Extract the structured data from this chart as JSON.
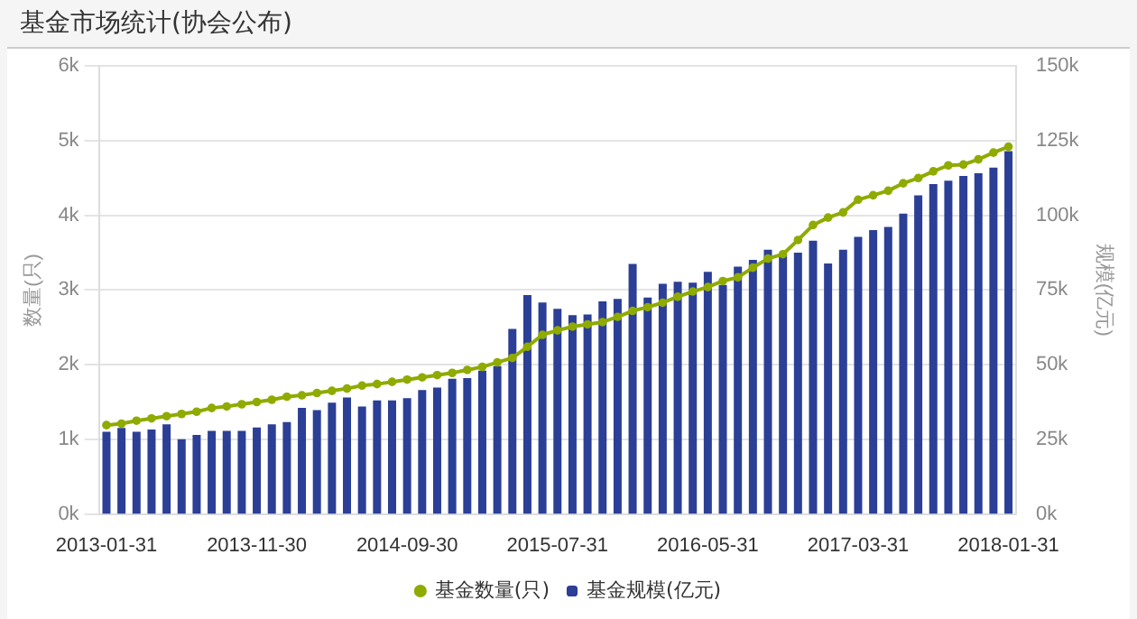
{
  "chart_data": {
    "type": "bar",
    "title": "基金市场统计(协会公布)",
    "ylabel": "数量(只)",
    "y2label": "规模(亿元)",
    "categories": [
      "2013-01-31",
      null,
      null,
      null,
      null,
      null,
      null,
      null,
      null,
      null,
      "2013-11-30",
      null,
      null,
      null,
      null,
      null,
      null,
      null,
      null,
      null,
      "2014-09-30",
      null,
      null,
      null,
      null,
      null,
      null,
      null,
      null,
      null,
      "2015-07-31",
      null,
      null,
      null,
      null,
      null,
      null,
      null,
      null,
      null,
      "2016-05-31",
      null,
      null,
      null,
      null,
      null,
      null,
      null,
      null,
      null,
      "2017-03-31",
      null,
      null,
      null,
      null,
      null,
      null,
      null,
      null,
      null,
      "2018-01-31"
    ],
    "series": [
      {
        "name": "基金数量(只)",
        "type": "line",
        "axis": "y",
        "color": "#8fab00",
        "values": [
          1190,
          1210,
          1250,
          1280,
          1310,
          1340,
          1370,
          1420,
          1440,
          1470,
          1500,
          1530,
          1570,
          1590,
          1620,
          1650,
          1680,
          1720,
          1740,
          1770,
          1800,
          1830,
          1860,
          1890,
          1930,
          1970,
          2030,
          2090,
          2240,
          2400,
          2460,
          2510,
          2540,
          2570,
          2640,
          2720,
          2770,
          2830,
          2910,
          2980,
          3040,
          3120,
          3170,
          3300,
          3420,
          3480,
          3670,
          3870,
          3970,
          4040,
          4210,
          4270,
          4330,
          4430,
          4500,
          4590,
          4670,
          4680,
          4750,
          4840,
          4920
        ]
      },
      {
        "name": "基金规模(亿元)",
        "axis": "y2",
        "color": "#2b3f96",
        "values": [
          27500,
          28800,
          27500,
          28300,
          30000,
          25000,
          26500,
          27800,
          27800,
          27800,
          29000,
          30000,
          30800,
          35500,
          34800,
          37300,
          39000,
          36000,
          38000,
          38000,
          38800,
          41500,
          42300,
          45300,
          45500,
          48000,
          49500,
          62000,
          73300,
          70800,
          68700,
          66600,
          66800,
          71200,
          72000,
          83700,
          72500,
          77100,
          77800,
          77500,
          81100,
          76700,
          82800,
          85100,
          88500,
          86600,
          87500,
          91500,
          83900,
          88500,
          92800,
          95100,
          96100,
          100600,
          106700,
          110500,
          111600,
          113200,
          114100,
          116000,
          121500
        ]
      }
    ],
    "ylim": [
      0,
      6000
    ],
    "yticks": [
      {
        "value": 0,
        "label": "0k"
      },
      {
        "value": 1000,
        "label": "1k"
      },
      {
        "value": 2000,
        "label": "2k"
      },
      {
        "value": 3000,
        "label": "3k"
      },
      {
        "value": 4000,
        "label": "4k"
      },
      {
        "value": 5000,
        "label": "5k"
      },
      {
        "value": 6000,
        "label": "6k"
      }
    ],
    "y2lim": [
      0,
      150000
    ],
    "y2ticks": [
      {
        "value": 0,
        "label": "0k"
      },
      {
        "value": 25000,
        "label": "25k"
      },
      {
        "value": 50000,
        "label": "50k"
      },
      {
        "value": 75000,
        "label": "75k"
      },
      {
        "value": 100000,
        "label": "100k"
      },
      {
        "value": 125000,
        "label": "125k"
      },
      {
        "value": 150000,
        "label": "150k"
      }
    ],
    "grid": "y",
    "legend": "bottom",
    "marker": "circle",
    "line_style": "solid"
  }
}
